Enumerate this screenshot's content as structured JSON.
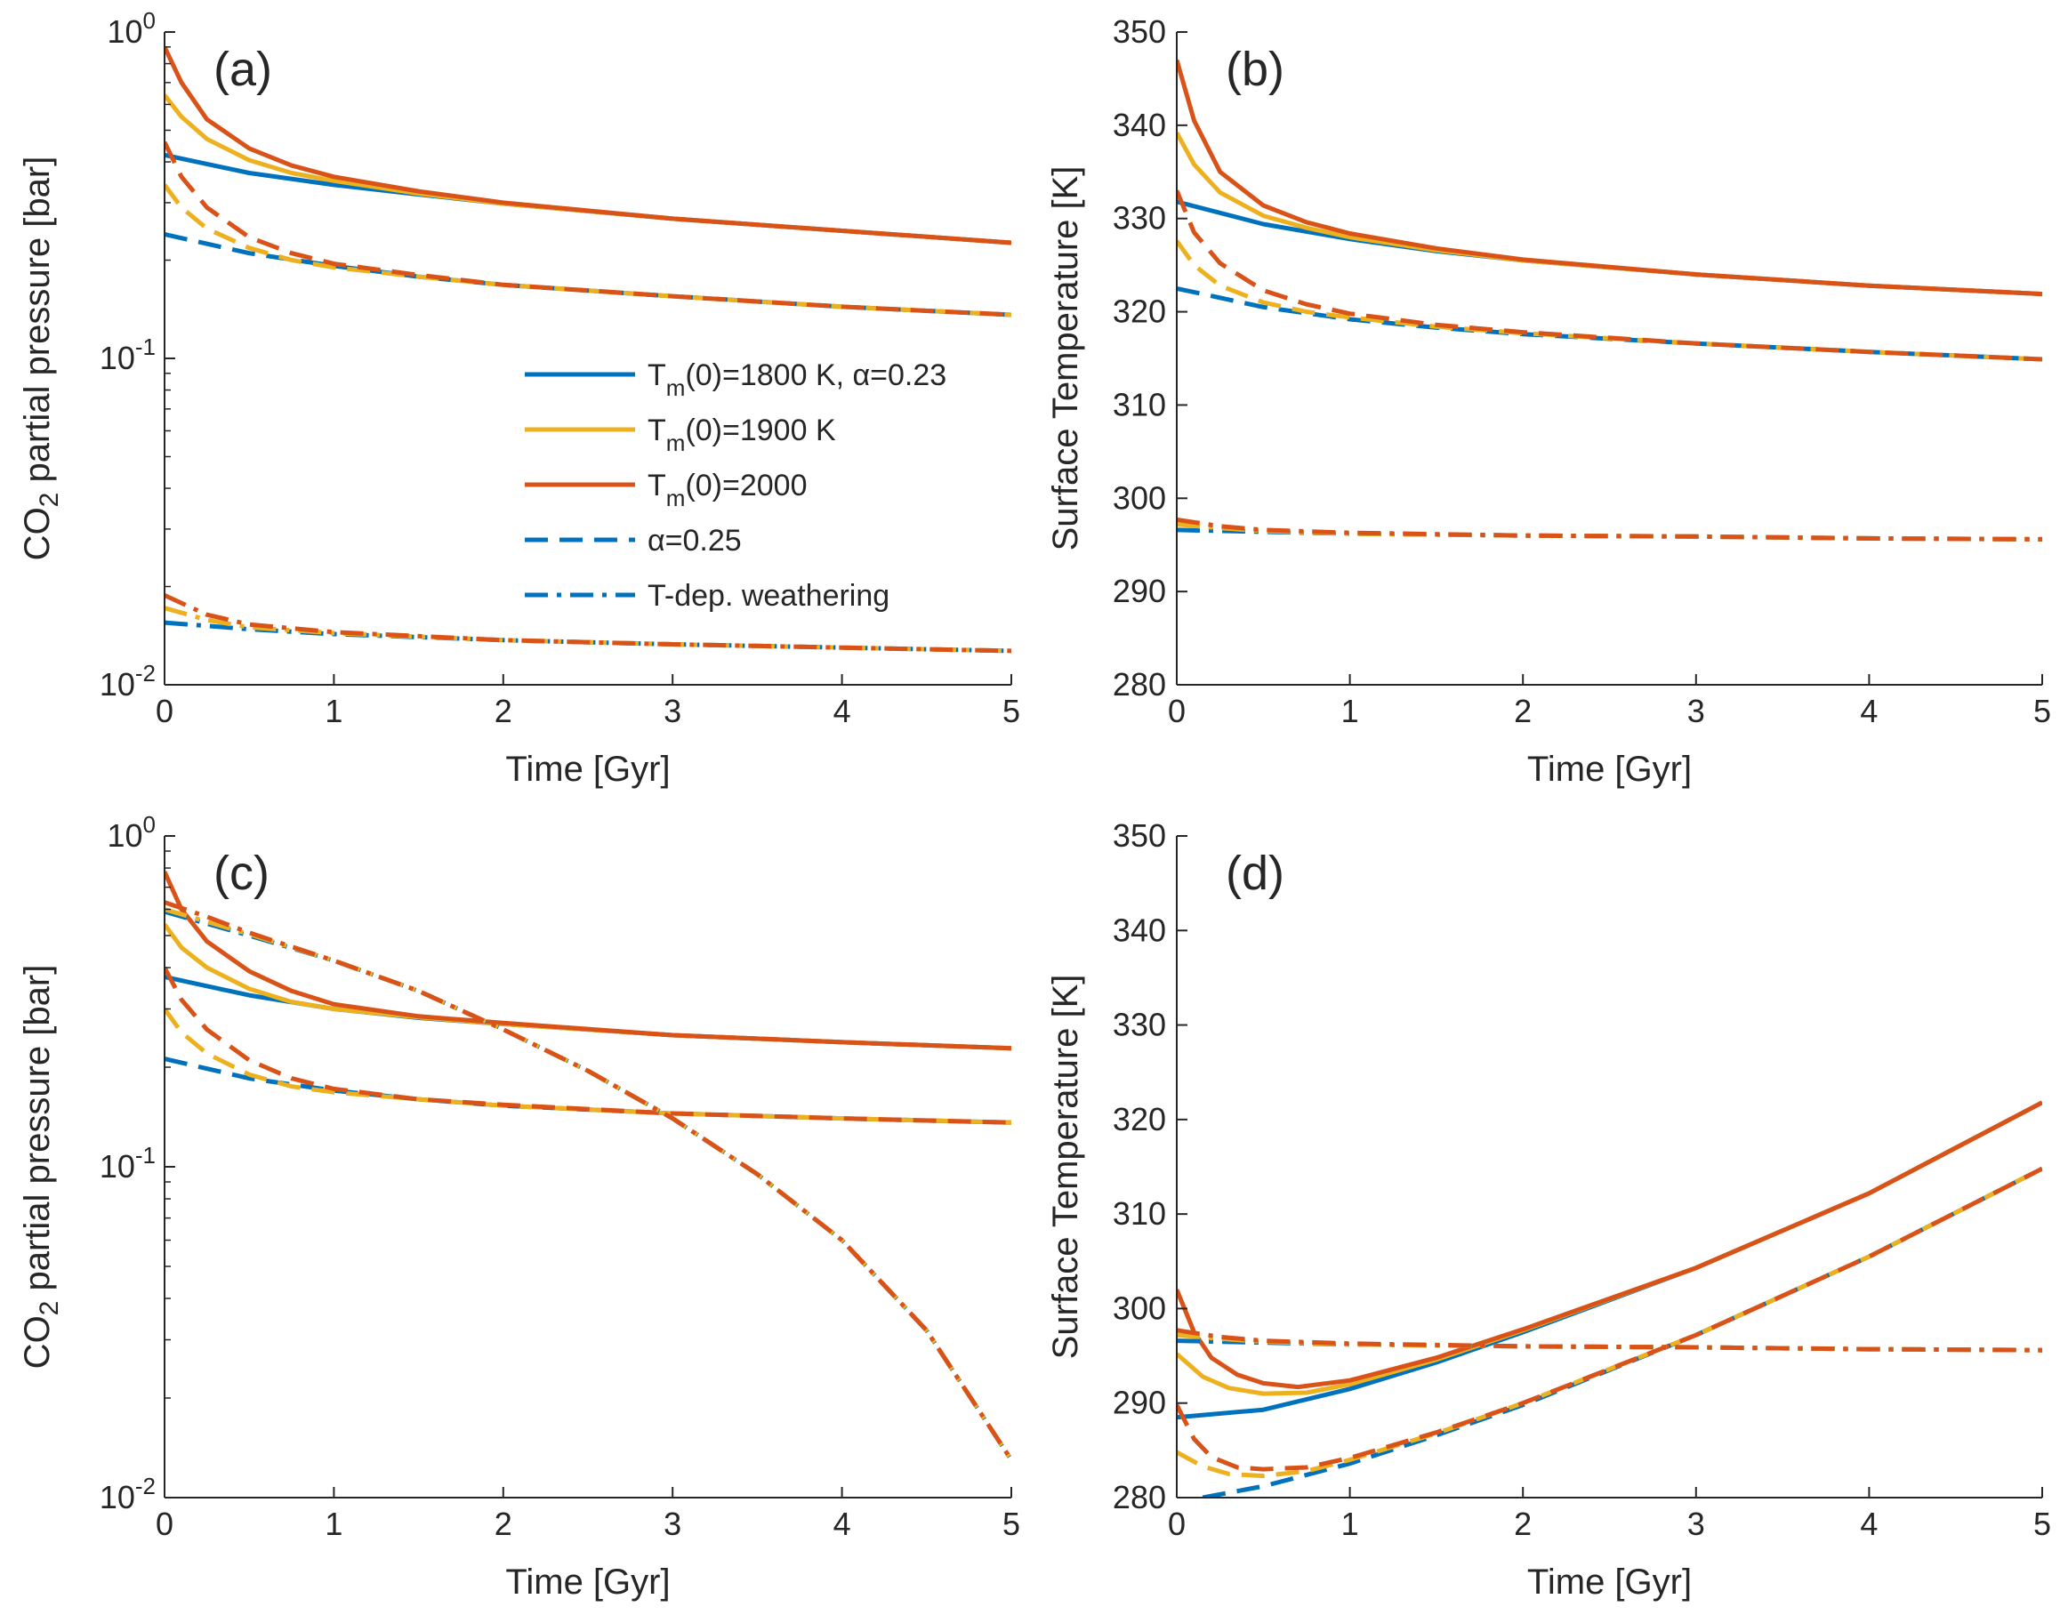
{
  "colors": {
    "blue": "#0072BD",
    "yellow": "#EDB120",
    "red": "#D95319",
    "axis": "#262626"
  },
  "legend": {
    "entries": [
      {
        "text": "T_m(0)=1800 K, α=0.23",
        "color": "#0072BD",
        "style": "solid"
      },
      {
        "text": "T_m(0)=1900 K",
        "color": "#EDB120",
        "style": "solid"
      },
      {
        "text": "T_m(0)=2000",
        "color": "#D95319",
        "style": "solid"
      },
      {
        "text": "α=0.25",
        "color": "#0072BD",
        "style": "dashed"
      },
      {
        "text": "T-dep. weathering",
        "color": "#0072BD",
        "style": "dashdot"
      }
    ]
  },
  "chart_data": [
    {
      "panel": "(a)",
      "type": "line",
      "xlabel": "Time [Gyr]",
      "ylabel": "CO2 partial pressure [bar]",
      "yscale": "log",
      "xlim": [
        0,
        5
      ],
      "ylim": [
        0.01,
        1
      ],
      "xticks": [
        "0",
        "1",
        "2",
        "3",
        "4",
        "5"
      ],
      "yticks": [
        "10^-2",
        "10^-1",
        "10^0"
      ],
      "series": [
        {
          "style": "solid",
          "color": "blue",
          "x": [
            0,
            0.5,
            1,
            1.5,
            2,
            3,
            4,
            5
          ],
          "y": [
            0.42,
            0.37,
            0.34,
            0.318,
            0.298,
            0.268,
            0.246,
            0.226
          ]
        },
        {
          "style": "solid",
          "color": "yellow",
          "x": [
            0,
            0.1,
            0.25,
            0.5,
            0.75,
            1,
            1.5,
            2,
            3,
            4,
            5
          ],
          "y": [
            0.64,
            0.55,
            0.47,
            0.405,
            0.37,
            0.35,
            0.32,
            0.298,
            0.268,
            0.246,
            0.226
          ]
        },
        {
          "style": "solid",
          "color": "red",
          "x": [
            0,
            0.1,
            0.25,
            0.5,
            0.75,
            1,
            1.5,
            2,
            3,
            4,
            5
          ],
          "y": [
            0.9,
            0.7,
            0.54,
            0.44,
            0.39,
            0.36,
            0.325,
            0.3,
            0.268,
            0.246,
            0.226
          ]
        },
        {
          "style": "dashed",
          "color": "blue",
          "x": [
            0,
            0.5,
            1,
            1.5,
            2,
            3,
            4,
            5
          ],
          "y": [
            0.24,
            0.21,
            0.192,
            0.178,
            0.168,
            0.155,
            0.144,
            0.136
          ]
        },
        {
          "style": "dashed",
          "color": "yellow",
          "x": [
            0,
            0.1,
            0.25,
            0.5,
            0.75,
            1,
            1.5,
            2,
            3,
            4,
            5
          ],
          "y": [
            0.34,
            0.29,
            0.25,
            0.218,
            0.2,
            0.19,
            0.178,
            0.168,
            0.155,
            0.144,
            0.136
          ]
        },
        {
          "style": "dashed",
          "color": "red",
          "x": [
            0,
            0.1,
            0.25,
            0.5,
            0.75,
            1,
            1.5,
            2,
            3,
            4,
            5
          ],
          "y": [
            0.46,
            0.36,
            0.29,
            0.235,
            0.21,
            0.195,
            0.18,
            0.168,
            0.155,
            0.144,
            0.136
          ]
        },
        {
          "style": "dashdot",
          "color": "blue",
          "x": [
            0,
            0.5,
            1,
            2,
            3,
            4,
            5
          ],
          "y": [
            0.0155,
            0.0148,
            0.0143,
            0.0137,
            0.0133,
            0.013,
            0.0127
          ]
        },
        {
          "style": "dashdot",
          "color": "yellow",
          "x": [
            0,
            0.25,
            0.5,
            1,
            2,
            3,
            4,
            5
          ],
          "y": [
            0.0172,
            0.0158,
            0.015,
            0.0144,
            0.0137,
            0.0133,
            0.013,
            0.0127
          ]
        },
        {
          "style": "dashdot",
          "color": "red",
          "x": [
            0,
            0.25,
            0.5,
            1,
            2,
            3,
            4,
            5
          ],
          "y": [
            0.0188,
            0.0164,
            0.0153,
            0.0145,
            0.0137,
            0.0133,
            0.013,
            0.0127
          ]
        }
      ]
    },
    {
      "panel": "(b)",
      "type": "line",
      "xlabel": "Time [Gyr]",
      "ylabel": "Surface Temperature [K]",
      "yscale": "linear",
      "xlim": [
        0,
        5
      ],
      "ylim": [
        280,
        350
      ],
      "xticks": [
        "0",
        "1",
        "2",
        "3",
        "4",
        "5"
      ],
      "yticks": [
        "280",
        "290",
        "300",
        "310",
        "320",
        "330",
        "340",
        "350"
      ],
      "series": [
        {
          "style": "solid",
          "color": "blue",
          "x": [
            0,
            0.5,
            1,
            1.5,
            2,
            3,
            4,
            5
          ],
          "y": [
            331.8,
            329.4,
            327.8,
            326.5,
            325.5,
            324,
            322.8,
            321.9
          ]
        },
        {
          "style": "solid",
          "color": "yellow",
          "x": [
            0,
            0.1,
            0.25,
            0.5,
            0.75,
            1,
            1.5,
            2,
            3,
            4,
            5
          ],
          "y": [
            339.2,
            335.8,
            332.8,
            330.3,
            329,
            328,
            326.6,
            325.5,
            324,
            322.8,
            321.9
          ]
        },
        {
          "style": "solid",
          "color": "red",
          "x": [
            0,
            0.1,
            0.25,
            0.5,
            0.75,
            1,
            1.5,
            2,
            3,
            4,
            5
          ],
          "y": [
            347,
            340.5,
            335,
            331.4,
            329.6,
            328.4,
            326.8,
            325.6,
            324,
            322.8,
            321.9
          ]
        },
        {
          "style": "dashed",
          "color": "blue",
          "x": [
            0,
            0.5,
            1,
            1.5,
            2,
            3,
            4,
            5
          ],
          "y": [
            322.5,
            320.5,
            319.2,
            318.3,
            317.6,
            316.6,
            315.7,
            314.9
          ]
        },
        {
          "style": "dashed",
          "color": "yellow",
          "x": [
            0,
            0.1,
            0.25,
            0.5,
            0.75,
            1,
            1.5,
            2,
            3,
            4,
            5
          ],
          "y": [
            327.6,
            325,
            322.8,
            321,
            320,
            319.4,
            318.4,
            317.7,
            316.6,
            315.7,
            314.9
          ]
        },
        {
          "style": "dashed",
          "color": "red",
          "x": [
            0,
            0.1,
            0.25,
            0.5,
            0.75,
            1,
            1.5,
            2,
            3,
            4,
            5
          ],
          "y": [
            333,
            328.5,
            325.2,
            322.3,
            320.8,
            319.8,
            318.6,
            317.8,
            316.6,
            315.7,
            314.9
          ]
        },
        {
          "style": "dashdot",
          "color": "blue",
          "x": [
            0,
            0.5,
            1,
            2,
            3,
            4,
            5
          ],
          "y": [
            296.6,
            296.4,
            296.2,
            296,
            295.9,
            295.7,
            295.6
          ]
        },
        {
          "style": "dashdot",
          "color": "yellow",
          "x": [
            0,
            0.25,
            0.5,
            1,
            2,
            3,
            4,
            5
          ],
          "y": [
            297.2,
            296.8,
            296.5,
            296.2,
            296,
            295.9,
            295.7,
            295.6
          ]
        },
        {
          "style": "dashdot",
          "color": "red",
          "x": [
            0,
            0.25,
            0.5,
            1,
            2,
            3,
            4,
            5
          ],
          "y": [
            297.7,
            297,
            296.6,
            296.3,
            296,
            295.9,
            295.7,
            295.6
          ]
        }
      ]
    },
    {
      "panel": "(c)",
      "type": "line",
      "xlabel": "Time [Gyr]",
      "ylabel": "CO2 partial pressure [bar]",
      "yscale": "log",
      "xlim": [
        0,
        5
      ],
      "ylim": [
        0.01,
        1
      ],
      "xticks": [
        "0",
        "1",
        "2",
        "3",
        "4",
        "5"
      ],
      "yticks": [
        "10^-2",
        "10^-1",
        "10^0"
      ],
      "series": [
        {
          "style": "solid",
          "color": "blue",
          "x": [
            0,
            0.5,
            1,
            1.5,
            2,
            3,
            4,
            5
          ],
          "y": [
            0.375,
            0.33,
            0.3,
            0.282,
            0.27,
            0.25,
            0.238,
            0.228
          ]
        },
        {
          "style": "solid",
          "color": "yellow",
          "x": [
            0,
            0.1,
            0.25,
            0.5,
            0.75,
            1,
            1.5,
            2,
            3,
            4,
            5
          ],
          "y": [
            0.54,
            0.46,
            0.4,
            0.345,
            0.315,
            0.3,
            0.283,
            0.27,
            0.25,
            0.238,
            0.228
          ]
        },
        {
          "style": "solid",
          "color": "red",
          "x": [
            0,
            0.1,
            0.25,
            0.5,
            0.75,
            1,
            1.5,
            2,
            3,
            4,
            5
          ],
          "y": [
            0.78,
            0.6,
            0.48,
            0.39,
            0.34,
            0.31,
            0.285,
            0.272,
            0.25,
            0.238,
            0.228
          ]
        },
        {
          "style": "dashed",
          "color": "blue",
          "x": [
            0,
            0.5,
            1,
            1.5,
            2,
            3,
            4,
            5
          ],
          "y": [
            0.212,
            0.185,
            0.17,
            0.16,
            0.153,
            0.145,
            0.14,
            0.136
          ]
        },
        {
          "style": "dashed",
          "color": "yellow",
          "x": [
            0,
            0.1,
            0.25,
            0.5,
            0.75,
            1,
            1.5,
            2,
            3,
            4,
            5
          ],
          "y": [
            0.3,
            0.255,
            0.22,
            0.19,
            0.175,
            0.168,
            0.16,
            0.153,
            0.145,
            0.14,
            0.136
          ]
        },
        {
          "style": "dashed",
          "color": "red",
          "x": [
            0,
            0.1,
            0.25,
            0.5,
            0.75,
            1,
            1.5,
            2,
            3,
            4,
            5
          ],
          "y": [
            0.4,
            0.32,
            0.26,
            0.21,
            0.185,
            0.172,
            0.16,
            0.154,
            0.145,
            0.14,
            0.136
          ]
        },
        {
          "style": "dashdot",
          "color": "blue",
          "x": [
            0,
            0.5,
            1,
            1.5,
            2,
            2.5,
            3,
            3.5,
            4,
            4.5,
            5
          ],
          "y": [
            0.59,
            0.5,
            0.42,
            0.34,
            0.26,
            0.195,
            0.14,
            0.095,
            0.06,
            0.032,
            0.013
          ]
        },
        {
          "style": "dashdot",
          "color": "yellow",
          "x": [
            0,
            0.5,
            1,
            1.5,
            2,
            2.5,
            3,
            3.5,
            4,
            4.5,
            5
          ],
          "y": [
            0.6,
            0.505,
            0.42,
            0.34,
            0.26,
            0.195,
            0.14,
            0.095,
            0.06,
            0.032,
            0.013
          ]
        },
        {
          "style": "dashdot",
          "color": "red",
          "x": [
            0,
            0.25,
            0.5,
            1,
            1.5,
            2,
            2.5,
            3,
            3.5,
            4,
            4.5,
            5
          ],
          "y": [
            0.63,
            0.57,
            0.51,
            0.42,
            0.34,
            0.26,
            0.195,
            0.14,
            0.095,
            0.06,
            0.032,
            0.013
          ]
        }
      ]
    },
    {
      "panel": "(d)",
      "type": "line",
      "xlabel": "Time [Gyr]",
      "ylabel": "Surface Temperature [K]",
      "yscale": "linear",
      "xlim": [
        0,
        5
      ],
      "ylim": [
        280,
        350
      ],
      "xticks": [
        "0",
        "1",
        "2",
        "3",
        "4",
        "5"
      ],
      "yticks": [
        "280",
        "290",
        "300",
        "310",
        "320",
        "330",
        "340",
        "350"
      ],
      "series": [
        {
          "style": "solid",
          "color": "blue",
          "x": [
            0,
            0.5,
            1,
            1.5,
            2,
            3,
            4,
            5
          ],
          "y": [
            288.5,
            289.3,
            291.5,
            294.3,
            297.5,
            304.3,
            312.2,
            321.8
          ]
        },
        {
          "style": "solid",
          "color": "yellow",
          "x": [
            0,
            0.15,
            0.3,
            0.5,
            0.75,
            1,
            1.5,
            2,
            3,
            4,
            5
          ],
          "y": [
            295.2,
            292.8,
            291.6,
            291,
            291.1,
            292,
            294.6,
            297.7,
            304.3,
            312.2,
            321.8
          ]
        },
        {
          "style": "solid",
          "color": "red",
          "x": [
            0,
            0.1,
            0.2,
            0.35,
            0.5,
            0.7,
            1,
            1.5,
            2,
            3,
            4,
            5
          ],
          "y": [
            302,
            297.5,
            294.8,
            293,
            292.1,
            291.7,
            292.4,
            294.8,
            297.8,
            304.3,
            312.2,
            321.8
          ]
        },
        {
          "style": "dashed",
          "color": "blue",
          "x": [
            0.15,
            0.5,
            1,
            1.5,
            2,
            3,
            4,
            5
          ],
          "y": [
            280,
            281.2,
            283.6,
            286.6,
            289.8,
            297.2,
            305.5,
            314.8
          ]
        },
        {
          "style": "dashed",
          "color": "yellow",
          "x": [
            0,
            0.15,
            0.3,
            0.5,
            0.75,
            1,
            1.5,
            2,
            3,
            4,
            5
          ],
          "y": [
            284.8,
            283.3,
            282.5,
            282.3,
            282.8,
            284,
            286.8,
            290,
            297.2,
            305.5,
            314.8
          ]
        },
        {
          "style": "dashed",
          "color": "red",
          "x": [
            0,
            0.1,
            0.2,
            0.35,
            0.5,
            0.75,
            1,
            1.5,
            2,
            3,
            4,
            5
          ],
          "y": [
            289.8,
            286.2,
            284.3,
            283.2,
            283,
            283.2,
            284.2,
            286.9,
            290,
            297.2,
            305.5,
            314.8
          ]
        },
        {
          "style": "dashdot",
          "color": "blue",
          "x": [
            0,
            0.5,
            1,
            2,
            3,
            4,
            5
          ],
          "y": [
            296.6,
            296.4,
            296.2,
            296,
            295.9,
            295.7,
            295.6
          ]
        },
        {
          "style": "dashdot",
          "color": "yellow",
          "x": [
            0,
            0.25,
            0.5,
            1,
            2,
            3,
            4,
            5
          ],
          "y": [
            297.2,
            296.8,
            296.5,
            296.2,
            296,
            295.9,
            295.7,
            295.6
          ]
        },
        {
          "style": "dashdot",
          "color": "red",
          "x": [
            0,
            0.25,
            0.5,
            1,
            2,
            3,
            4,
            5
          ],
          "y": [
            297.7,
            297,
            296.6,
            296.3,
            296,
            295.9,
            295.7,
            295.6
          ]
        }
      ]
    }
  ]
}
